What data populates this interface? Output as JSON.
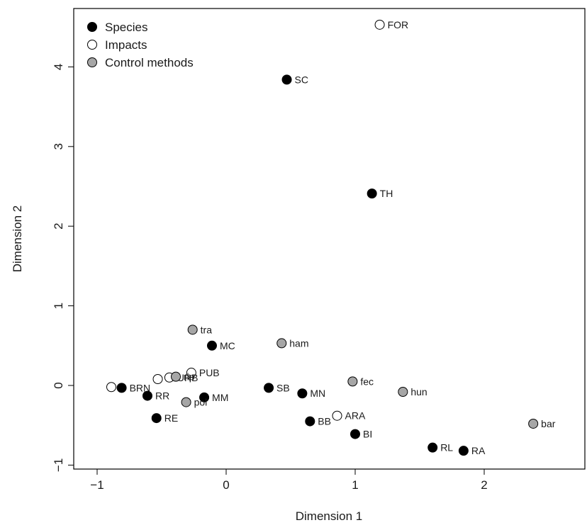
{
  "chart_data": {
    "type": "scatter",
    "title": "",
    "xlabel": "Dimension 1",
    "ylabel": "Dimension 2",
    "xlim": [
      -1.1,
      2.8
    ],
    "ylim": [
      -1.1,
      4.75
    ],
    "xticks": [
      -1,
      0,
      1,
      2
    ],
    "yticks": [
      -1,
      0,
      1,
      2,
      3,
      4
    ],
    "grid": false,
    "legend_position": "top-left",
    "series": [
      {
        "name": "Species",
        "fill": "#000000",
        "points": [
          {
            "label": "SC",
            "x": 0.47,
            "y": 3.84
          },
          {
            "label": "TH",
            "x": 1.13,
            "y": 2.41
          },
          {
            "label": "MC",
            "x": -0.11,
            "y": 0.5
          },
          {
            "label": "SB",
            "x": 0.33,
            "y": -0.03
          },
          {
            "label": "MN",
            "x": 0.59,
            "y": -0.1
          },
          {
            "label": "BRN",
            "x": -0.81,
            "y": -0.03
          },
          {
            "label": "RR",
            "x": -0.61,
            "y": -0.13
          },
          {
            "label": "MM",
            "x": -0.17,
            "y": -0.15
          },
          {
            "label": "RE",
            "x": -0.54,
            "y": -0.41
          },
          {
            "label": "BB",
            "x": 0.65,
            "y": -0.45
          },
          {
            "label": "BI",
            "x": 1.0,
            "y": -0.61
          },
          {
            "label": "RL",
            "x": 1.6,
            "y": -0.78
          },
          {
            "label": "RA",
            "x": 1.84,
            "y": -0.82
          }
        ]
      },
      {
        "name": "Impacts",
        "fill": "#ffffff",
        "points": [
          {
            "label": "FOR",
            "x": 1.19,
            "y": 4.53
          },
          {
            "label": "PUB",
            "x": -0.27,
            "y": 0.16
          },
          {
            "label": "URB",
            "x": -0.44,
            "y": 0.1
          },
          {
            "label": "",
            "x": -0.53,
            "y": 0.08
          },
          {
            "label": "",
            "x": -0.89,
            "y": -0.02
          },
          {
            "label": "ARA",
            "x": 0.86,
            "y": -0.38
          }
        ]
      },
      {
        "name": "Control methods",
        "fill": "#a6a6a6",
        "points": [
          {
            "label": "tra",
            "x": -0.26,
            "y": 0.7
          },
          {
            "label": "ham",
            "x": 0.43,
            "y": 0.53
          },
          {
            "label": "fec",
            "x": 0.98,
            "y": 0.05
          },
          {
            "label": "hun",
            "x": 1.37,
            "y": -0.08
          },
          {
            "label": "pol",
            "x": -0.31,
            "y": -0.21
          },
          {
            "label": "rip",
            "x": -0.39,
            "y": 0.11
          },
          {
            "label": "bar",
            "x": 2.38,
            "y": -0.48
          }
        ]
      }
    ]
  }
}
